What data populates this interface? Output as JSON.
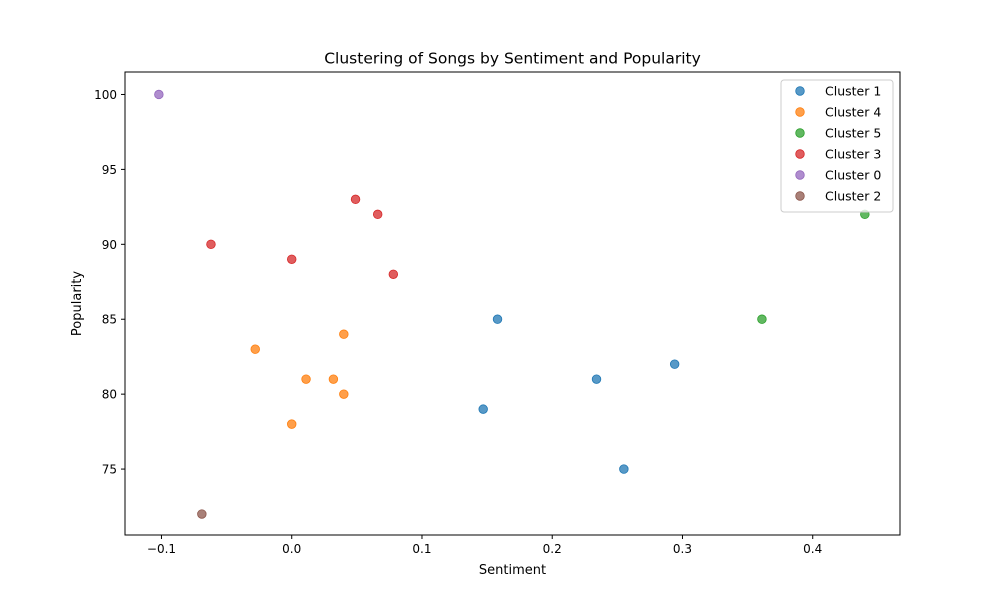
{
  "chart_data": {
    "type": "scatter",
    "title": "Clustering of Songs by Sentiment and Popularity",
    "xlabel": "Sentiment",
    "ylabel": "Popularity",
    "xlim": [
      -0.128,
      0.467
    ],
    "ylim": [
      70.6,
      101.5
    ],
    "xticks": [
      -0.1,
      0.0,
      0.1,
      0.2,
      0.3,
      0.4
    ],
    "xtick_labels": [
      "−0.1",
      "0.0",
      "0.1",
      "0.2",
      "0.3",
      "0.4"
    ],
    "yticks": [
      75,
      80,
      85,
      90,
      95,
      100
    ],
    "ytick_labels": [
      "75",
      "80",
      "85",
      "90",
      "95",
      "100"
    ],
    "grid": false,
    "legend_position": "top-right",
    "series": [
      {
        "name": "Cluster 1",
        "color": "#1f77b4",
        "points": [
          [
            0.158,
            85
          ],
          [
            0.234,
            81
          ],
          [
            0.294,
            82
          ],
          [
            0.147,
            79
          ],
          [
            0.255,
            75
          ]
        ]
      },
      {
        "name": "Cluster 4",
        "color": "#ff7f0e",
        "points": [
          [
            0.04,
            84
          ],
          [
            -0.028,
            83
          ],
          [
            0.011,
            81
          ],
          [
            0.032,
            81
          ],
          [
            0.04,
            80
          ],
          [
            0.0,
            78
          ]
        ]
      },
      {
        "name": "Cluster 5",
        "color": "#2ca02c",
        "points": [
          [
            0.44,
            92
          ],
          [
            0.361,
            85
          ]
        ]
      },
      {
        "name": "Cluster 3",
        "color": "#d62728",
        "points": [
          [
            0.049,
            93
          ],
          [
            0.066,
            92
          ],
          [
            -0.062,
            90
          ],
          [
            0.0,
            89
          ],
          [
            0.078,
            88
          ]
        ]
      },
      {
        "name": "Cluster 0",
        "color": "#9467bd",
        "points": [
          [
            -0.102,
            100
          ]
        ]
      },
      {
        "name": "Cluster 2",
        "color": "#8c564b",
        "points": [
          [
            -0.069,
            72
          ]
        ]
      }
    ]
  }
}
